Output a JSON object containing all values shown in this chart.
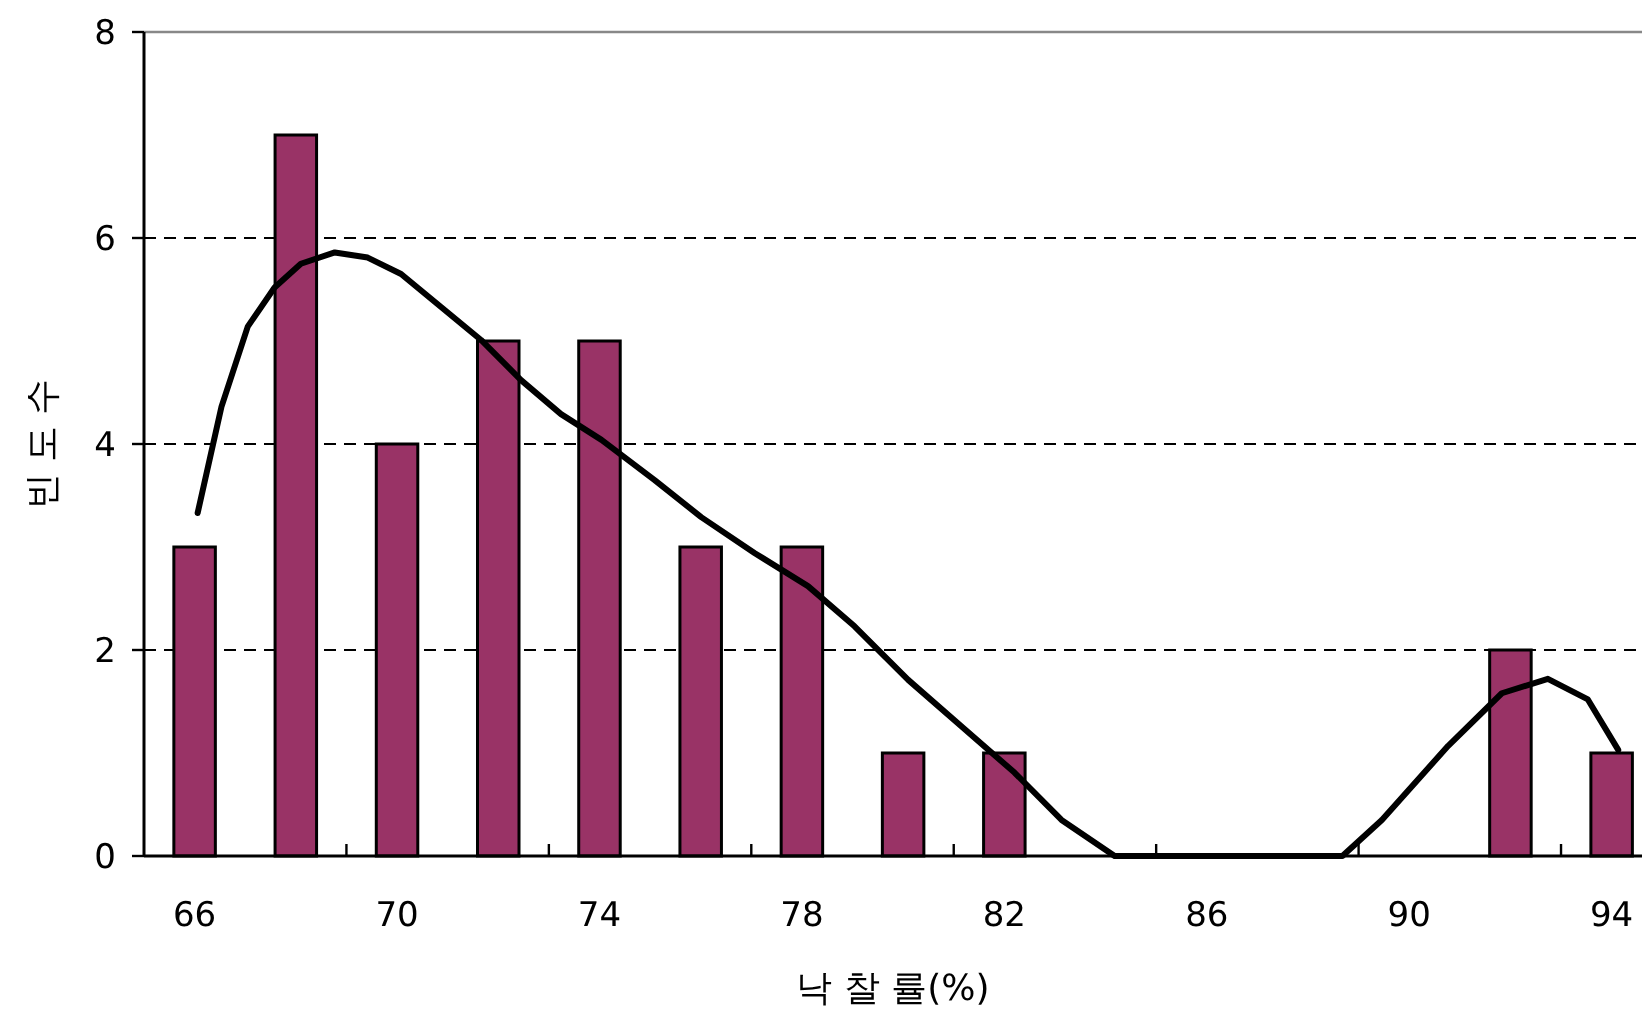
{
  "chart_data": {
    "type": "bar",
    "xlabel": "낙 찰 률(%)",
    "ylabel": "빈 도 수",
    "x": [
      66,
      68,
      70,
      72,
      74,
      76,
      78,
      80,
      82,
      84,
      86,
      88,
      90,
      92,
      94
    ],
    "xlim": [
      65,
      94.6
    ],
    "xticks": [
      66,
      {
        "value": 69,
        "label": null
      },
      70,
      {
        "value": 73,
        "label": null
      },
      74,
      {
        "value": 77,
        "label": null
      },
      78,
      {
        "value": 81,
        "label": null
      },
      82,
      {
        "value": 85,
        "label": null
      },
      86,
      {
        "value": 89,
        "label": null
      },
      90,
      {
        "value": 93,
        "label": null
      },
      94
    ],
    "ylim": [
      0,
      8
    ],
    "yticks": [
      0,
      2,
      4,
      6,
      8
    ],
    "grid": "y",
    "series": [
      {
        "color": "#993366",
        "values": [
          3,
          7,
          4,
          5,
          5,
          3,
          3,
          1,
          1,
          0,
          0,
          0,
          0,
          2,
          1
        ]
      },
      {
        "type": "line",
        "color": "#000000",
        "x": [
          66.06,
          66.53,
          67.05,
          67.58,
          68.1,
          68.77,
          69.42,
          70.08,
          70.87,
          71.66,
          72.45,
          73.24,
          74.04,
          75.09,
          76.01,
          77.07,
          78.12,
          79.04,
          80.1,
          81.15,
          82.2,
          83.13,
          84.18,
          88.68,
          89.46,
          90.77,
          91.83,
          92.74,
          93.53,
          94.13
        ],
        "values": [
          3.33,
          4.36,
          5.14,
          5.52,
          5.75,
          5.86,
          5.81,
          5.65,
          5.33,
          5.01,
          4.62,
          4.29,
          4.04,
          3.65,
          3.29,
          2.94,
          2.62,
          2.23,
          1.71,
          1.26,
          0.81,
          0.35,
          0,
          0,
          0.35,
          1.07,
          1.58,
          1.72,
          1.52,
          1.03
        ]
      }
    ]
  }
}
